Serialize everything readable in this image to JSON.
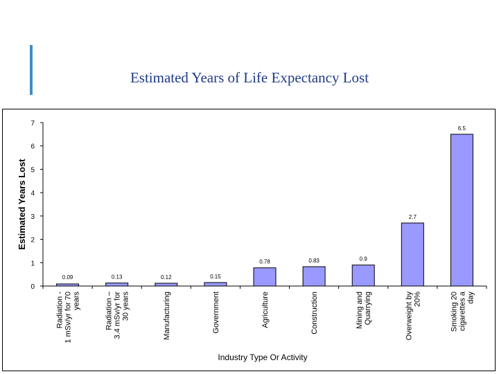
{
  "slide": {
    "title": "Estimated Years of Life Expectancy Lost"
  },
  "colors": {
    "bar_fill": "#9999ff",
    "bar_stroke": "#000000",
    "title": "#1f3a8a",
    "accent": "#3d8ec9"
  },
  "chart_data": {
    "type": "bar",
    "title": "",
    "xlabel": "Industry Type Or Activity",
    "ylabel": "Estimated Years Lost",
    "ylim": [
      0,
      7
    ],
    "yticks": [
      0,
      1,
      2,
      3,
      4,
      5,
      6,
      7
    ],
    "grid": false,
    "categories": [
      [
        "Radiation -",
        "1 mSv/yr for 70",
        "years"
      ],
      [
        "Radiation –",
        "3.4 mSv/yr for",
        "30 years"
      ],
      [
        "Manufacturing"
      ],
      [
        "Government"
      ],
      [
        "Agriculture"
      ],
      [
        "Construction"
      ],
      [
        "Mining and",
        "Quarrying"
      ],
      [
        "Overweight by",
        "20%"
      ],
      [
        "Smoking 20",
        "cigarettes a",
        "day"
      ]
    ],
    "values": [
      0.09,
      0.13,
      0.12,
      0.15,
      0.78,
      0.83,
      0.9,
      2.7,
      6.5
    ],
    "data_labels": [
      "0.09",
      "0.13",
      "0.12",
      "0.15",
      "0.78",
      "0.83",
      "0.9",
      "2.7",
      "6.5"
    ]
  }
}
